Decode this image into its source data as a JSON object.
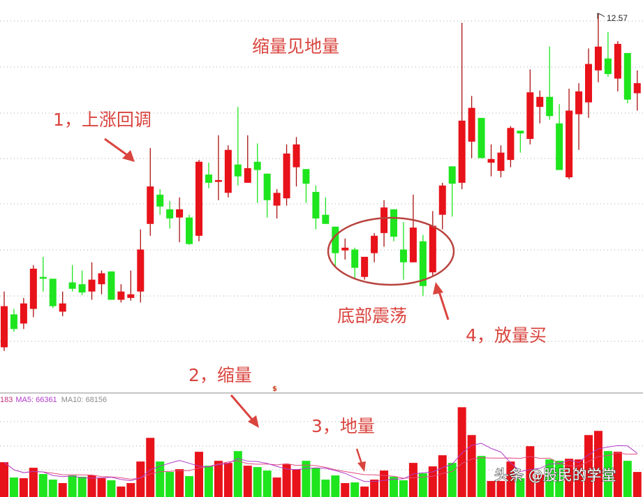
{
  "chart_data": [
    {
      "type": "candlestick",
      "title": "",
      "price_ylim": [
        8.42,
        12.72
      ],
      "grid": true,
      "colors": {
        "up": "#e8121a",
        "down": "#1ee51e",
        "grid": "#a8a8a8"
      },
      "high_label": "12.57",
      "ohlc": [
        [
          8.92,
          9.53,
          8.88,
          9.37
        ],
        [
          9.28,
          9.34,
          9.09,
          9.12
        ],
        [
          9.18,
          9.46,
          9.12,
          9.4
        ],
        [
          9.34,
          9.82,
          9.25,
          9.78
        ],
        [
          9.69,
          9.91,
          9.53,
          9.67
        ],
        [
          9.67,
          9.67,
          9.35,
          9.37
        ],
        [
          9.31,
          9.53,
          9.26,
          9.4
        ],
        [
          9.63,
          9.82,
          9.53,
          9.56
        ],
        [
          9.61,
          9.76,
          9.49,
          9.52
        ],
        [
          9.53,
          9.85,
          9.44,
          9.66
        ],
        [
          9.61,
          9.76,
          9.5,
          9.73
        ],
        [
          9.75,
          9.75,
          9.44,
          9.44
        ],
        [
          9.44,
          9.61,
          9.41,
          9.53
        ],
        [
          9.46,
          9.76,
          9.43,
          9.5
        ],
        [
          9.53,
          10.21,
          9.41,
          9.99
        ],
        [
          10.27,
          11.1,
          10.14,
          10.68
        ],
        [
          10.59,
          10.65,
          10.37,
          10.46
        ],
        [
          10.43,
          10.52,
          10.22,
          10.33
        ],
        [
          10.34,
          10.56,
          10.07,
          10.43
        ],
        [
          10.34,
          10.37,
          10.04,
          10.05
        ],
        [
          10.14,
          10.97,
          10.08,
          10.95
        ],
        [
          10.81,
          10.94,
          10.66,
          10.72
        ],
        [
          10.73,
          11.24,
          10.53,
          10.75
        ],
        [
          10.61,
          11.13,
          10.56,
          11.08
        ],
        [
          10.92,
          11.55,
          10.69,
          10.79
        ],
        [
          10.72,
          11.24,
          10.72,
          10.88
        ],
        [
          10.95,
          11.15,
          10.5,
          10.86
        ],
        [
          10.82,
          10.82,
          10.34,
          10.53
        ],
        [
          10.47,
          10.65,
          10.33,
          10.61
        ],
        [
          10.55,
          11.14,
          10.47,
          11.04
        ],
        [
          10.89,
          11.22,
          10.68,
          11.14
        ],
        [
          10.87,
          10.87,
          10.5,
          10.71
        ],
        [
          10.62,
          10.69,
          10.21,
          10.33
        ],
        [
          10.37,
          10.56,
          10.27,
          10.27
        ],
        [
          10.24,
          10.24,
          9.81,
          9.95
        ],
        [
          9.98,
          10.11,
          9.88,
          10.01
        ],
        [
          9.99,
          10.01,
          9.68,
          9.79
        ],
        [
          9.69,
          9.91,
          9.66,
          9.91
        ],
        [
          9.95,
          10.17,
          9.85,
          10.14
        ],
        [
          10.17,
          10.53,
          10.02,
          10.45
        ],
        [
          10.43,
          10.43,
          10.08,
          10.13
        ],
        [
          9.99,
          10.29,
          9.66,
          9.85
        ],
        [
          9.85,
          10.59,
          9.85,
          10.23
        ],
        [
          10.08,
          10.15,
          9.48,
          9.59
        ],
        [
          9.74,
          10.41,
          9.7,
          10.25
        ],
        [
          10.37,
          10.72,
          10.21,
          10.69
        ],
        [
          10.9,
          10.9,
          10.35,
          10.71
        ],
        [
          10.72,
          12.47,
          10.65,
          11.4
        ],
        [
          11.17,
          11.67,
          10.99,
          11.54
        ],
        [
          11.43,
          11.43,
          10.99,
          10.99
        ],
        [
          10.94,
          11.14,
          10.79,
          10.98
        ],
        [
          10.85,
          11.13,
          10.78,
          11.05
        ],
        [
          10.97,
          11.34,
          10.89,
          11.32
        ],
        [
          11.29,
          11.29,
          11.05,
          11.26
        ],
        [
          11.2,
          11.96,
          11.14,
          11.71
        ],
        [
          11.55,
          11.73,
          11.37,
          11.66
        ],
        [
          11.66,
          12.21,
          11.41,
          11.45
        ],
        [
          11.37,
          11.58,
          10.86,
          10.86
        ],
        [
          10.78,
          11.75,
          10.76,
          11.51
        ],
        [
          11.47,
          11.81,
          11.08,
          11.72
        ],
        [
          11.6,
          12.19,
          11.43,
          12.02
        ],
        [
          11.95,
          12.57,
          11.82,
          12.21
        ],
        [
          12.08,
          12.37,
          11.88,
          11.91
        ],
        [
          11.86,
          12.27,
          11.72,
          12.24
        ],
        [
          12.14,
          12.14,
          11.59,
          11.63
        ],
        [
          11.7,
          11.95,
          11.51,
          11.81
        ]
      ]
    },
    {
      "type": "bar",
      "title": "",
      "volume_ylim": [
        0,
        160000
      ],
      "grid": true,
      "legend": {
        "vol_tail": "183",
        "ma5": "MA5: 66361",
        "ma10": "MA10: 68156"
      },
      "colors": {
        "ma5": "#b03cc8",
        "ma10": "#e04a80",
        "vol_tail": "#c0307a",
        "ma10_text": "#8c8c8c"
      },
      "volume": [
        52800,
        28600,
        27500,
        44000,
        34100,
        25300,
        19800,
        31900,
        29700,
        31900,
        27500,
        24200,
        14300,
        19800,
        53900,
        91300,
        53900,
        37400,
        41800,
        30800,
        69300,
        47300,
        55000,
        51700,
        70400,
        47300,
        45100,
        39600,
        28600,
        49500,
        41800,
        55000,
        44000,
        25300,
        31900,
        19800,
        20900,
        14300,
        25300,
        39600,
        29700,
        24200,
        51700,
        35200,
        46200,
        63800,
        51700,
        139700,
        95700,
        62700,
        23100,
        23100,
        53900,
        27500,
        78100,
        33000,
        57200,
        55000,
        58300,
        57200,
        95700,
        102300,
        70400,
        69300,
        55000,
        37400
      ]
    }
  ],
  "annotations": {
    "title": "缩量见地量",
    "step1": "1，上涨回调",
    "bottom": "底部震荡",
    "step4": "4，放量买",
    "step2": "2，缩量",
    "step3": "3，地量",
    "marker": "$",
    "color": "#d9443e"
  },
  "watermark": "头条 @股民的学堂"
}
